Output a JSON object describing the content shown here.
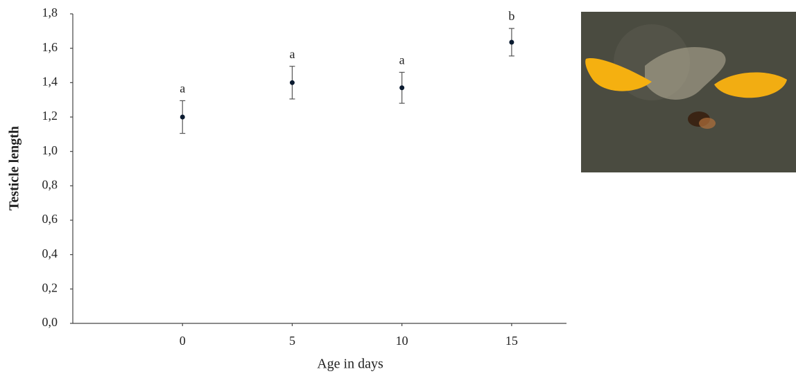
{
  "chart_data": {
    "type": "scatter",
    "x_label": "Age in days",
    "y_label": "Testicle length",
    "x": [
      0,
      5,
      10,
      15
    ],
    "values": [
      1.2,
      1.4,
      1.37,
      1.635
    ],
    "errors": [
      0.095,
      0.095,
      0.09,
      0.08
    ],
    "annotations": [
      "a",
      "a",
      "a",
      "b"
    ],
    "color": "#0b1b30",
    "xlim": [
      -5,
      17.5
    ],
    "xticks": [
      0,
      5,
      10,
      15
    ],
    "ylim": [
      0,
      1.8
    ],
    "yticks": [
      {
        "value": 0,
        "label": "0,0"
      },
      {
        "value": 0.2,
        "label": "0,2"
      },
      {
        "value": 0.4,
        "label": "0,4"
      },
      {
        "value": 0.6,
        "label": "0,6"
      },
      {
        "value": 0.8,
        "label": "0,8"
      },
      {
        "value": 1.0,
        "label": "1,0"
      },
      {
        "value": 1.2,
        "label": "1,2"
      },
      {
        "value": 1.4,
        "label": "1,4"
      },
      {
        "value": 1.6,
        "label": "1,6"
      },
      {
        "value": 1.8,
        "label": "1,8"
      }
    ],
    "grid": false
  }
}
